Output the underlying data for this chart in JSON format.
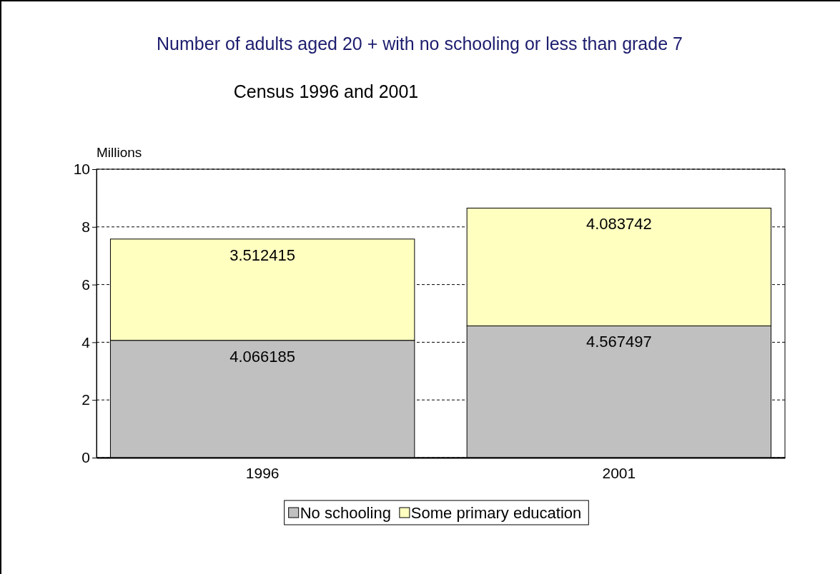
{
  "chart_data": {
    "type": "bar",
    "title": "Number of adults aged 20 + with no schooling or less than grade 7",
    "subtitle": "Census 1996 and 2001",
    "ylabel": "Millions",
    "categories": [
      "1996",
      "2001"
    ],
    "stacked": true,
    "series": [
      {
        "name": "No schooling",
        "color": "#c0c0c0",
        "values": [
          4.066185,
          4.567497
        ]
      },
      {
        "name": "Some primary education",
        "color": "#ffffc0",
        "values": [
          3.512415,
          4.083742
        ]
      }
    ],
    "ylim": [
      0,
      10
    ],
    "yticks": [
      0,
      2,
      4,
      6,
      8,
      10
    ],
    "grid": "y",
    "legend": "bottom",
    "data_labels": true
  }
}
